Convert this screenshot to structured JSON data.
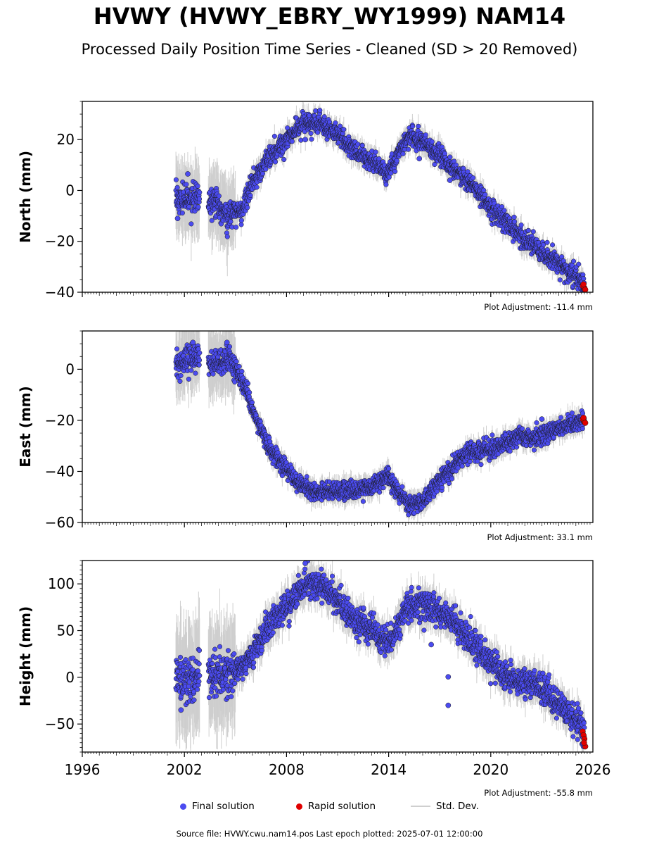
{
  "title": "HVWY (HVWY_EBRY_WY1999) NAM14",
  "subtitle": "Processed Daily Position Time Series - Cleaned (SD > 20 Removed)",
  "colors": {
    "final": "#4b4bf0",
    "rapid": "#e00000",
    "std": "#cfcfcf",
    "edge": "#1a1a1a"
  },
  "legend": {
    "final": "Final solution",
    "rapid": "Rapid solution",
    "std": "Std. Dev."
  },
  "source": "Source file: HVWY.cwu.nam14.pos  Last epoch plotted: 2025-07-01 12:00:00",
  "chart_data": [
    {
      "type": "scatter",
      "ylabel": "North (mm)",
      "adjustment": "Plot Adjustment: -11.4 mm",
      "xlim": [
        1996,
        2026
      ],
      "ylim": [
        -40,
        35
      ],
      "yticks": [
        -40,
        -20,
        0,
        20
      ],
      "trend": [
        [
          2001.5,
          -3
        ],
        [
          2002.2,
          -4
        ],
        [
          2002.8,
          -3
        ],
        [
          2003.6,
          -4
        ],
        [
          2004.0,
          -6
        ],
        [
          2004.6,
          -10
        ],
        [
          2005.4,
          -7
        ],
        [
          2006.0,
          3
        ],
        [
          2007.0,
          13
        ],
        [
          2008.0,
          20
        ],
        [
          2009.0,
          27
        ],
        [
          2010.0,
          26
        ],
        [
          2011.0,
          22
        ],
        [
          2012.0,
          16
        ],
        [
          2013.0,
          12
        ],
        [
          2013.9,
          6
        ],
        [
          2014.6,
          15
        ],
        [
          2015.2,
          22
        ],
        [
          2016.0,
          19
        ],
        [
          2017.0,
          14
        ],
        [
          2018.0,
          7
        ],
        [
          2019.0,
          1
        ],
        [
          2020.0,
          -7
        ],
        [
          2021.0,
          -13
        ],
        [
          2022.0,
          -19
        ],
        [
          2023.0,
          -24
        ],
        [
          2024.0,
          -29
        ],
        [
          2025.0,
          -34
        ],
        [
          2025.5,
          -37
        ]
      ],
      "noise": 2.0,
      "gaps": [
        [
          2002.9,
          2003.4
        ]
      ],
      "outliers": [
        [
          2002.2,
          6.5
        ],
        [
          2001.6,
          -11
        ],
        [
          2009.1,
          20
        ],
        [
          2015.8,
          12.5
        ],
        [
          2017.6,
          4
        ]
      ],
      "rapid": [
        [
          2025.4,
          -37.5
        ],
        [
          2025.5,
          -38.3
        ],
        [
          2025.55,
          -39
        ],
        [
          2025.45,
          -36.9
        ]
      ]
    },
    {
      "type": "scatter",
      "ylabel": "East (mm)",
      "adjustment": "Plot Adjustment: 33.1 mm",
      "xlim": [
        1996,
        2026
      ],
      "ylim": [
        -60,
        15
      ],
      "yticks": [
        -60,
        -40,
        -20,
        0
      ],
      "trend": [
        [
          2001.5,
          1
        ],
        [
          2002.2,
          4
        ],
        [
          2002.8,
          5
        ],
        [
          2003.5,
          2
        ],
        [
          2004.0,
          3
        ],
        [
          2004.6,
          4
        ],
        [
          2005.0,
          0
        ],
        [
          2005.6,
          -7
        ],
        [
          2006.2,
          -20
        ],
        [
          2007.0,
          -31
        ],
        [
          2007.6,
          -36
        ],
        [
          2008.2,
          -41
        ],
        [
          2009.0,
          -47
        ],
        [
          2010.0,
          -48
        ],
        [
          2011.0,
          -48
        ],
        [
          2012.0,
          -48
        ],
        [
          2013.0,
          -46
        ],
        [
          2013.6,
          -43
        ],
        [
          2014.0,
          -42
        ],
        [
          2014.6,
          -49
        ],
        [
          2015.2,
          -53
        ],
        [
          2016.0,
          -52
        ],
        [
          2016.6,
          -47
        ],
        [
          2017.5,
          -40
        ],
        [
          2018.5,
          -33
        ],
        [
          2019.5,
          -32
        ],
        [
          2020.5,
          -30
        ],
        [
          2021.0,
          -29
        ],
        [
          2021.6,
          -26
        ],
        [
          2022.5,
          -27
        ],
        [
          2023.5,
          -25
        ],
        [
          2024.5,
          -22
        ],
        [
          2025.5,
          -20
        ]
      ],
      "noise": 1.8,
      "gaps": [
        [
          2002.9,
          2003.4
        ]
      ],
      "outliers": [
        [
          2023.0,
          -19.5
        ],
        [
          2004.5,
          10.5
        ],
        [
          2002.5,
          10.5
        ]
      ],
      "rapid": [
        [
          2025.4,
          -19.5
        ],
        [
          2025.5,
          -20.5
        ],
        [
          2025.55,
          -21
        ],
        [
          2025.45,
          -19
        ]
      ]
    },
    {
      "type": "scatter",
      "ylabel": "Height (mm)",
      "adjustment": "Plot Adjustment: -55.8 mm",
      "xlim": [
        1996,
        2026
      ],
      "xticks": [
        1996,
        2002,
        2008,
        2014,
        2020,
        2026
      ],
      "ylim": [
        -80,
        125
      ],
      "yticks": [
        -50,
        0,
        50,
        100
      ],
      "trend": [
        [
          2001.5,
          0
        ],
        [
          2002.2,
          -2
        ],
        [
          2002.8,
          5
        ],
        [
          2003.5,
          3
        ],
        [
          2004.2,
          2
        ],
        [
          2005.0,
          5
        ],
        [
          2006.0,
          25
        ],
        [
          2007.0,
          55
        ],
        [
          2008.0,
          75
        ],
        [
          2009.0,
          100
        ],
        [
          2010.0,
          100
        ],
        [
          2011.0,
          80
        ],
        [
          2012.0,
          60
        ],
        [
          2013.0,
          50
        ],
        [
          2014.0,
          35
        ],
        [
          2014.6,
          55
        ],
        [
          2015.0,
          75
        ],
        [
          2016.0,
          78
        ],
        [
          2017.0,
          70
        ],
        [
          2018.0,
          55
        ],
        [
          2019.0,
          35
        ],
        [
          2020.0,
          15
        ],
        [
          2021.0,
          -2
        ],
        [
          2022.0,
          -5
        ],
        [
          2023.0,
          -12
        ],
        [
          2024.0,
          -30
        ],
        [
          2025.0,
          -45
        ],
        [
          2025.5,
          -60
        ]
      ],
      "noise": 8.0,
      "gaps": [
        [
          2002.9,
          2003.4
        ]
      ],
      "outliers": [
        [
          2017.5,
          0.5
        ],
        [
          2017.5,
          -30
        ],
        [
          2016.5,
          35
        ],
        [
          2009.1,
          122
        ],
        [
          2001.8,
          -35
        ]
      ],
      "rapid": [
        [
          2025.4,
          -58
        ],
        [
          2025.45,
          -62
        ],
        [
          2025.5,
          -66
        ],
        [
          2025.55,
          -74
        ],
        [
          2025.48,
          -70
        ]
      ]
    }
  ]
}
